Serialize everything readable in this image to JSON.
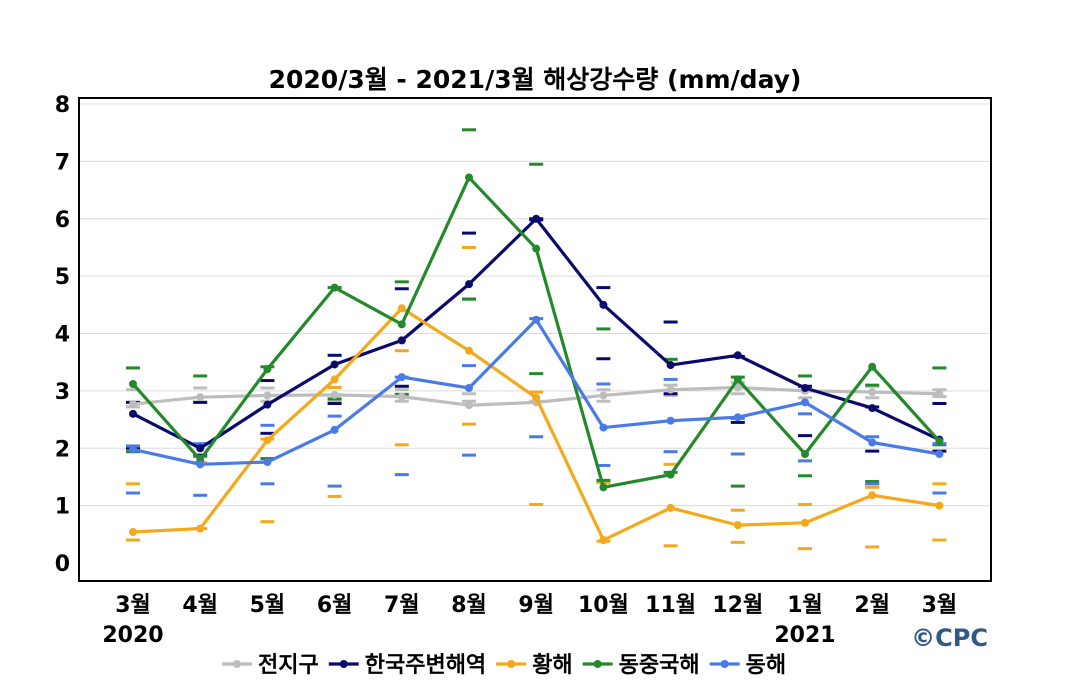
{
  "chart_data": {
    "type": "line",
    "title": "2020/3월 - 2021/3월 해상강수량 (mm/day)",
    "categories": [
      "3월",
      "4월",
      "5월",
      "6월",
      "7월",
      "8월",
      "9월",
      "10월",
      "11월",
      "12월",
      "1월",
      "2월",
      "3월"
    ],
    "year_labels": [
      {
        "index": 0,
        "label": "2020"
      },
      {
        "index": 10,
        "label": "2021"
      }
    ],
    "ylim": [
      0,
      8
    ],
    "yticks": [
      "0",
      "1",
      "2",
      "3",
      "4",
      "5",
      "6",
      "7",
      "8"
    ],
    "grid": true,
    "legend_position": "bottom",
    "credit": "©CPC",
    "series": [
      {
        "name": "전지구",
        "color": "#bdbdbd",
        "values": [
          2.77,
          2.89,
          2.92,
          2.93,
          2.9,
          2.75,
          2.8,
          2.92,
          3.02,
          3.06,
          3.0,
          2.98,
          2.95
        ],
        "range_upper": [
          3.02,
          3.05,
          3.05,
          3.06,
          3.02,
          2.95,
          2.98,
          3.02,
          3.1,
          3.15,
          3.08,
          3.08,
          3.02
        ],
        "range_lower": [
          2.72,
          2.8,
          2.82,
          2.82,
          2.82,
          2.82,
          2.82,
          2.82,
          2.92,
          2.95,
          2.88,
          2.88,
          2.9
        ]
      },
      {
        "name": "한국주변해역",
        "color": "#0a0a6e",
        "values": [
          2.6,
          2.0,
          2.76,
          3.46,
          3.88,
          4.86,
          6.0,
          4.5,
          3.45,
          3.62,
          3.05,
          2.7,
          2.15
        ],
        "range_upper": [
          2.8,
          2.8,
          3.18,
          3.62,
          4.78,
          5.75,
          6.0,
          4.8,
          4.2,
          3.6,
          3.08,
          2.72,
          2.78
        ],
        "range_lower": [
          2.0,
          1.88,
          2.26,
          2.78,
          3.08,
          4.6,
          5.98,
          3.56,
          2.95,
          2.45,
          2.22,
          1.95,
          1.95
        ]
      },
      {
        "name": "황해",
        "color": "#f4a81c",
        "values": [
          0.54,
          0.6,
          2.14,
          3.2,
          4.44,
          3.7,
          2.88,
          0.4,
          0.96,
          0.66,
          0.7,
          1.18,
          1.0
        ],
        "range_upper": [
          1.38,
          1.75,
          2.16,
          3.06,
          3.7,
          5.5,
          2.98,
          1.4,
          1.72,
          0.92,
          1.02,
          1.32,
          1.38
        ],
        "range_lower": [
          0.4,
          0.6,
          0.72,
          1.16,
          2.06,
          2.42,
          1.02,
          0.38,
          0.3,
          0.36,
          0.25,
          0.28,
          0.4
        ]
      },
      {
        "name": "동중국해",
        "color": "#23892a",
        "values": [
          3.12,
          1.8,
          3.38,
          4.8,
          4.16,
          6.72,
          5.48,
          1.32,
          1.54,
          3.2,
          1.9,
          3.42,
          2.12
        ],
        "range_upper": [
          3.4,
          3.26,
          3.42,
          4.8,
          4.9,
          7.55,
          6.95,
          4.08,
          3.55,
          3.24,
          3.26,
          3.1,
          3.4
        ],
        "range_lower": [
          1.94,
          1.86,
          1.82,
          2.86,
          2.94,
          4.6,
          3.3,
          1.44,
          1.58,
          1.34,
          1.52,
          1.42,
          2.06
        ]
      },
      {
        "name": "동해",
        "color": "#4a7ae6",
        "values": [
          1.98,
          1.72,
          1.76,
          2.32,
          3.24,
          3.05,
          4.24,
          2.36,
          2.48,
          2.54,
          2.8,
          2.1,
          1.9
        ],
        "range_upper": [
          2.04,
          2.08,
          2.4,
          2.56,
          3.24,
          3.44,
          4.26,
          3.12,
          3.2,
          2.52,
          2.6,
          2.2,
          2.08
        ],
        "range_lower": [
          1.22,
          1.18,
          1.38,
          1.34,
          1.54,
          1.88,
          2.2,
          1.7,
          1.94,
          1.9,
          1.78,
          1.38,
          1.22
        ]
      }
    ]
  }
}
